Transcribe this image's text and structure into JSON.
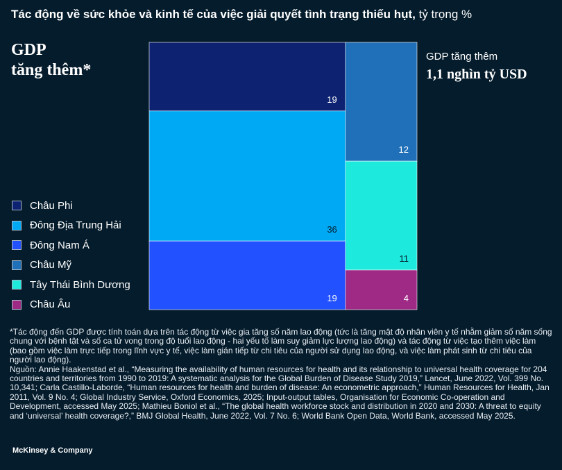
{
  "title": {
    "bold": "Tác động về sức khỏe và kinh tế của việc giải quyết tình trạng thiếu hụt,",
    "normal": " tỷ trọng %"
  },
  "left_heading": [
    "GDP",
    "tăng thêm*"
  ],
  "right_heading": {
    "sub": "GDP tăng thêm",
    "big": "1,1 nghìn tỷ USD"
  },
  "chart_data": {
    "type": "marimekko",
    "columns": [
      {
        "segments": [
          {
            "region": "Châu Phi",
            "value": 19,
            "color": "#0d2372"
          },
          {
            "region": "Đông Địa Trung Hải",
            "value": 36,
            "color": "#00a9f4"
          },
          {
            "region": "Đông Nam Á",
            "value": 19,
            "color": "#2251ff"
          }
        ]
      },
      {
        "segments": [
          {
            "region": "Châu Mỹ",
            "value": 12,
            "color": "#1f70b8"
          },
          {
            "region": "Tây Thái Bình Dương",
            "value": 11,
            "color": "#1de9dd"
          },
          {
            "region": "Châu Âu",
            "value": 4,
            "color": "#9e2a86"
          }
        ]
      }
    ]
  },
  "legend": [
    {
      "label": "Châu Phi",
      "color": "#0d2372"
    },
    {
      "label": "Đông Địa Trung Hải",
      "color": "#00a9f4"
    },
    {
      "label": "Đông Nam Á",
      "color": "#2251ff"
    },
    {
      "label": "Châu Mỹ",
      "color": "#1f70b8"
    },
    {
      "label": "Tây Thái Bình Dương",
      "color": "#1de9dd"
    },
    {
      "label": "Châu Âu",
      "color": "#9e2a86"
    }
  ],
  "notes": {
    "footnote": "*Tác động đến GDP được tính toán dựa trên tác động từ việc gia tăng số năm lao động (tức là tăng mật độ nhân viên y tế nhằm giảm số năm sống chung với bệnh tật và số ca tử vong trong độ tuổi lao động - hai yếu tố làm suy giảm lực lượng lao động) và tác động từ việc tạo thêm việc làm (bao gồm việc làm trực tiếp trong lĩnh vực y tế, việc làm gián tiếp từ chi tiêu của người sử dụng lao động, và việc làm phát sinh từ chi tiêu của người lao động).",
    "source": "Nguồn: Annie Haakenstad et al., “Measuring the availability of human resources for health and its relationship to universal health coverage for 204 countries and territories from 1990 to 2019: A systematic analysis for the Global Burden of Disease Study 2019,” Lancet, June 2022, Vol. 399 No. 10,341; Carla Castillo-Laborde, “Human resources for health and burden of disease: An econometric approach,” Human Resources for Health, Jan 2011, Vol. 9 No. 4; Global Industry Service, Oxford Economics, 2025; Input-output tables, Organisation for Economic Co-operation and Development, accessed May 2025; Mathieu Boniol et al., “The global health workforce stock and distribution in 2020 and 2030: A threat to equity and ‘universal’ health coverage?,” BMJ Global Health, June 2022, Vol. 7 No. 6; World Bank Open Data, World Bank, accessed May 2025."
  },
  "footer": "McKinsey & Company"
}
